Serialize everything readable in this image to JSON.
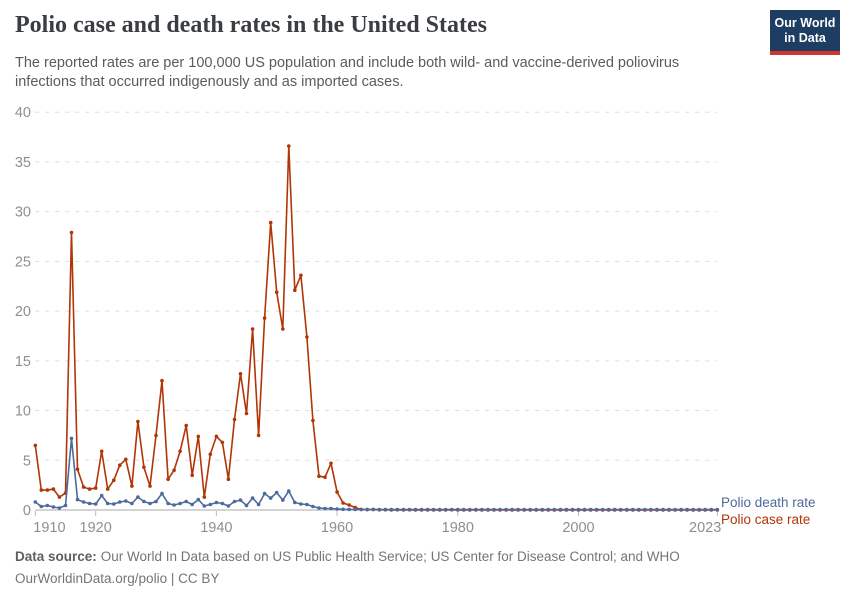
{
  "header": {
    "title": "Polio case and death rates in the United States",
    "subtitle": "The reported rates are per 100,000 US population and include both wild- and vaccine-derived poliovirus\ninfections that occurred indigenously and as imported cases.",
    "logo_text": "Our World\nin Data"
  },
  "legend": {
    "death_label": "Polio death rate",
    "case_label": "Polio case rate"
  },
  "footer": {
    "source_label": "Data source:",
    "source_text": "Our World In Data based on US Public Health Service; US Center for Disease Control; and WHO",
    "link_text": "OurWorldinData.org/polio | CC BY"
  },
  "colors": {
    "case_rate": "#b13507",
    "death_rate": "#4c6a9c",
    "gridline": "#dddddd",
    "axis": "#a9a9a9",
    "tick": "#bbbbbb",
    "tick_label": "#8f8f8f",
    "logo_navy": "#1d3d63",
    "logo_red": "#d0342c"
  },
  "chart_data": {
    "type": "line",
    "title": "Polio case and death rates in the United States",
    "xlabel": "",
    "ylabel": "",
    "xlim": [
      1910,
      2023
    ],
    "ylim": [
      0,
      40
    ],
    "x_ticks": [
      1910,
      1920,
      1940,
      1960,
      1980,
      2000,
      2023
    ],
    "y_ticks": [
      0,
      5,
      10,
      15,
      20,
      25,
      30,
      35,
      40
    ],
    "grid": "horizontal-dashed",
    "legend_position": "right-of-line-end",
    "markers": true,
    "series": [
      {
        "name": "Polio case rate",
        "color": "#b13507",
        "points": [
          [
            1910,
            6.5
          ],
          [
            1911,
            2.0
          ],
          [
            1912,
            2.0
          ],
          [
            1913,
            2.1
          ],
          [
            1914,
            1.3
          ],
          [
            1915,
            1.7
          ],
          [
            1916,
            27.9
          ],
          [
            1917,
            4.1
          ],
          [
            1918,
            2.3
          ],
          [
            1919,
            2.1
          ],
          [
            1920,
            2.2
          ],
          [
            1921,
            5.9
          ],
          [
            1922,
            2.1
          ],
          [
            1923,
            3.0
          ],
          [
            1924,
            4.5
          ],
          [
            1925,
            5.1
          ],
          [
            1926,
            2.4
          ],
          [
            1927,
            8.9
          ],
          [
            1928,
            4.3
          ],
          [
            1929,
            2.4
          ],
          [
            1930,
            7.5
          ],
          [
            1931,
            13.0
          ],
          [
            1932,
            3.1
          ],
          [
            1933,
            4.0
          ],
          [
            1934,
            5.9
          ],
          [
            1935,
            8.5
          ],
          [
            1936,
            3.5
          ],
          [
            1937,
            7.4
          ],
          [
            1938,
            1.3
          ],
          [
            1939,
            5.6
          ],
          [
            1940,
            7.4
          ],
          [
            1941,
            6.8
          ],
          [
            1942,
            3.1
          ],
          [
            1943,
            9.1
          ],
          [
            1944,
            13.7
          ],
          [
            1945,
            9.7
          ],
          [
            1946,
            18.2
          ],
          [
            1947,
            7.5
          ],
          [
            1948,
            19.3
          ],
          [
            1949,
            28.9
          ],
          [
            1950,
            21.9
          ],
          [
            1951,
            18.2
          ],
          [
            1952,
            36.6
          ],
          [
            1953,
            22.1
          ],
          [
            1954,
            23.6
          ],
          [
            1955,
            17.4
          ],
          [
            1956,
            9.0
          ],
          [
            1957,
            3.4
          ],
          [
            1958,
            3.3
          ],
          [
            1959,
            4.7
          ],
          [
            1960,
            1.8
          ],
          [
            1961,
            0.7
          ],
          [
            1962,
            0.5
          ],
          [
            1963,
            0.24
          ],
          [
            1964,
            0.06
          ],
          [
            1965,
            0.04
          ],
          [
            1966,
            0.06
          ],
          [
            1967,
            0.02
          ],
          [
            1968,
            0.03
          ],
          [
            1969,
            0.01
          ],
          [
            1970,
            0.02
          ],
          [
            1971,
            0.01
          ],
          [
            1972,
            0.02
          ],
          [
            1973,
            0.01
          ],
          [
            1974,
            0.01
          ],
          [
            1975,
            0.01
          ],
          [
            1976,
            0.01
          ],
          [
            1977,
            0.01
          ],
          [
            1978,
            0.01
          ],
          [
            1979,
            0.02
          ],
          [
            1980,
            0.01
          ],
          [
            1981,
            0.01
          ],
          [
            1982,
            0
          ],
          [
            1983,
            0.01
          ],
          [
            1984,
            0
          ],
          [
            1985,
            0
          ],
          [
            1986,
            0
          ],
          [
            1987,
            0
          ],
          [
            1988,
            0
          ],
          [
            1989,
            0
          ],
          [
            1990,
            0
          ],
          [
            1991,
            0
          ],
          [
            1992,
            0
          ],
          [
            1993,
            0
          ],
          [
            1994,
            0
          ],
          [
            1995,
            0
          ],
          [
            1996,
            0
          ],
          [
            1997,
            0
          ],
          [
            1998,
            0
          ],
          [
            1999,
            0
          ],
          [
            2000,
            0
          ],
          [
            2001,
            0
          ],
          [
            2002,
            0
          ],
          [
            2003,
            0
          ],
          [
            2004,
            0
          ],
          [
            2005,
            0
          ],
          [
            2006,
            0
          ],
          [
            2007,
            0
          ],
          [
            2008,
            0
          ],
          [
            2009,
            0
          ],
          [
            2010,
            0
          ],
          [
            2011,
            0
          ],
          [
            2012,
            0
          ],
          [
            2013,
            0
          ],
          [
            2014,
            0
          ],
          [
            2015,
            0
          ],
          [
            2016,
            0
          ],
          [
            2017,
            0
          ],
          [
            2018,
            0
          ],
          [
            2019,
            0
          ],
          [
            2020,
            0
          ],
          [
            2021,
            0
          ],
          [
            2022,
            0
          ],
          [
            2023,
            0
          ]
        ]
      },
      {
        "name": "Polio death rate",
        "color": "#4c6a9c",
        "points": [
          [
            1910,
            0.8
          ],
          [
            1911,
            0.35
          ],
          [
            1912,
            0.45
          ],
          [
            1913,
            0.3
          ],
          [
            1914,
            0.2
          ],
          [
            1915,
            0.45
          ],
          [
            1916,
            7.2
          ],
          [
            1917,
            1.05
          ],
          [
            1918,
            0.8
          ],
          [
            1919,
            0.65
          ],
          [
            1920,
            0.6
          ],
          [
            1921,
            1.45
          ],
          [
            1922,
            0.65
          ],
          [
            1923,
            0.6
          ],
          [
            1924,
            0.8
          ],
          [
            1925,
            0.9
          ],
          [
            1926,
            0.65
          ],
          [
            1927,
            1.3
          ],
          [
            1928,
            0.85
          ],
          [
            1929,
            0.65
          ],
          [
            1930,
            0.85
          ],
          [
            1931,
            1.65
          ],
          [
            1932,
            0.65
          ],
          [
            1933,
            0.5
          ],
          [
            1934,
            0.65
          ],
          [
            1935,
            0.85
          ],
          [
            1936,
            0.55
          ],
          [
            1937,
            1.05
          ],
          [
            1938,
            0.4
          ],
          [
            1939,
            0.55
          ],
          [
            1940,
            0.75
          ],
          [
            1941,
            0.65
          ],
          [
            1942,
            0.4
          ],
          [
            1943,
            0.85
          ],
          [
            1944,
            1.0
          ],
          [
            1945,
            0.45
          ],
          [
            1946,
            1.2
          ],
          [
            1947,
            0.55
          ],
          [
            1948,
            1.65
          ],
          [
            1949,
            1.2
          ],
          [
            1950,
            1.75
          ],
          [
            1951,
            1.0
          ],
          [
            1952,
            1.9
          ],
          [
            1953,
            0.75
          ],
          [
            1954,
            0.6
          ],
          [
            1955,
            0.55
          ],
          [
            1956,
            0.35
          ],
          [
            1957,
            0.2
          ],
          [
            1958,
            0.15
          ],
          [
            1959,
            0.15
          ],
          [
            1960,
            0.1
          ],
          [
            1961,
            0.07
          ],
          [
            1962,
            0.06
          ],
          [
            1963,
            0.05
          ],
          [
            1964,
            0.05
          ],
          [
            1965,
            0.05
          ],
          [
            1966,
            0.05
          ],
          [
            1967,
            0.05
          ],
          [
            1968,
            0.05
          ],
          [
            1969,
            0.05
          ],
          [
            1970,
            0.05
          ],
          [
            1971,
            0.05
          ],
          [
            1972,
            0.05
          ],
          [
            1973,
            0.05
          ],
          [
            1974,
            0.05
          ],
          [
            1975,
            0.05
          ],
          [
            1976,
            0.05
          ],
          [
            1977,
            0.05
          ],
          [
            1978,
            0.05
          ],
          [
            1979,
            0.05
          ],
          [
            1980,
            0.05
          ],
          [
            1981,
            0.05
          ],
          [
            1982,
            0.05
          ],
          [
            1983,
            0.05
          ],
          [
            1984,
            0.05
          ],
          [
            1985,
            0.05
          ],
          [
            1986,
            0.05
          ],
          [
            1987,
            0.05
          ],
          [
            1988,
            0.05
          ],
          [
            1989,
            0.05
          ],
          [
            1990,
            0.05
          ],
          [
            1991,
            0.05
          ],
          [
            1992,
            0.05
          ],
          [
            1993,
            0.05
          ],
          [
            1994,
            0.05
          ],
          [
            1995,
            0.05
          ],
          [
            1996,
            0.05
          ],
          [
            1997,
            0.05
          ],
          [
            1998,
            0.05
          ],
          [
            1999,
            0.05
          ],
          [
            2000,
            0.05
          ],
          [
            2001,
            0.05
          ],
          [
            2002,
            0.05
          ],
          [
            2003,
            0.05
          ],
          [
            2004,
            0.05
          ],
          [
            2005,
            0.05
          ],
          [
            2006,
            0.05
          ],
          [
            2007,
            0.05
          ],
          [
            2008,
            0.05
          ],
          [
            2009,
            0.05
          ],
          [
            2010,
            0.05
          ],
          [
            2011,
            0.05
          ],
          [
            2012,
            0.05
          ],
          [
            2013,
            0.05
          ],
          [
            2014,
            0.05
          ],
          [
            2015,
            0.05
          ],
          [
            2016,
            0.05
          ],
          [
            2017,
            0.05
          ],
          [
            2018,
            0.05
          ],
          [
            2019,
            0.05
          ],
          [
            2020,
            0.05
          ],
          [
            2021,
            0.05
          ],
          [
            2022,
            0.05
          ],
          [
            2023,
            0.05
          ]
        ]
      }
    ]
  }
}
